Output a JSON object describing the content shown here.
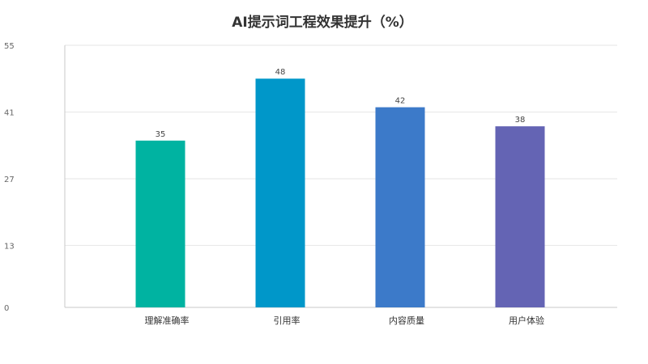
{
  "chart_data": {
    "type": "bar",
    "title": "AI提示词工程效果提升（%）",
    "xlabel": "",
    "ylabel": "",
    "categories": [
      "理解准确率",
      "引用率",
      "内容质量",
      "用户体验"
    ],
    "values": [
      35,
      48,
      42,
      38
    ],
    "colors": [
      "#00b3a1",
      "#0097c9",
      "#3c7ac9",
      "#6464b4"
    ],
    "ylim": [
      0,
      55
    ],
    "yticks": [
      0,
      13,
      27,
      41,
      55
    ],
    "grid": true,
    "legend": "none"
  }
}
